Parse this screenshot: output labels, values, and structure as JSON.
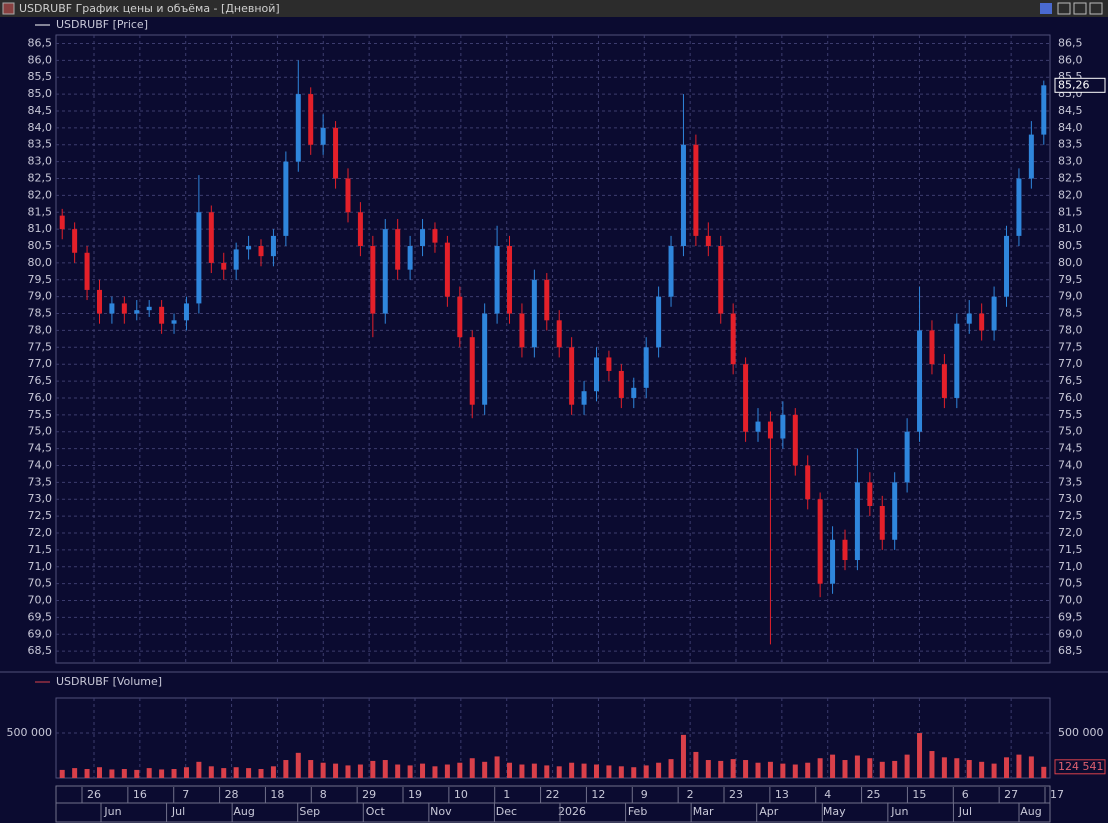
{
  "window": {
    "title": "USDRUBF График цены и объёма - [Дневной]"
  },
  "chart_data": [
    {
      "type": "candlestick",
      "legend": "USDRUBF [Price]",
      "up_color": "#2f86dc",
      "down_color": "#e4202a",
      "grid": true,
      "ylim": [
        68.15,
        86.75
      ],
      "yticks": [
        {
          "value": 68.5,
          "label": "68,5"
        },
        {
          "value": 69,
          "label": "69,0"
        },
        {
          "value": 69.5,
          "label": "69,5"
        },
        {
          "value": 70,
          "label": "70,0"
        },
        {
          "value": 70.5,
          "label": "70,5"
        },
        {
          "value": 71,
          "label": "71,0"
        },
        {
          "value": 71.5,
          "label": "71,5"
        },
        {
          "value": 72,
          "label": "72,0"
        },
        {
          "value": 72.5,
          "label": "72,5"
        },
        {
          "value": 73,
          "label": "73,0"
        },
        {
          "value": 73.5,
          "label": "73,5"
        },
        {
          "value": 74,
          "label": "74,0"
        },
        {
          "value": 74.5,
          "label": "74,5"
        },
        {
          "value": 75,
          "label": "75,0"
        },
        {
          "value": 75.5,
          "label": "75,5"
        },
        {
          "value": 76,
          "label": "76,0"
        },
        {
          "value": 76.5,
          "label": "76,5"
        },
        {
          "value": 77,
          "label": "77,0"
        },
        {
          "value": 77.5,
          "label": "77,5"
        },
        {
          "value": 78,
          "label": "78,0"
        },
        {
          "value": 78.5,
          "label": "78,5"
        },
        {
          "value": 79,
          "label": "79,0"
        },
        {
          "value": 79.5,
          "label": "79,5"
        },
        {
          "value": 80,
          "label": "80,0"
        },
        {
          "value": 80.5,
          "label": "80,5"
        },
        {
          "value": 81,
          "label": "81,0"
        },
        {
          "value": 81.5,
          "label": "81,5"
        },
        {
          "value": 82,
          "label": "82,0"
        },
        {
          "value": 82.5,
          "label": "82,5"
        },
        {
          "value": 83,
          "label": "83,0"
        },
        {
          "value": 83.5,
          "label": "83,5"
        },
        {
          "value": 84,
          "label": "84,0"
        },
        {
          "value": 84.5,
          "label": "84,5"
        },
        {
          "value": 85,
          "label": "85,0"
        },
        {
          "value": 85.5,
          "label": "85,5"
        },
        {
          "value": 86,
          "label": "86,0"
        },
        {
          "value": 86.5,
          "label": "86,5"
        }
      ],
      "open": [
        81.4,
        81.0,
        80.3,
        79.2,
        78.5,
        78.8,
        78.5,
        78.6,
        78.7,
        78.2,
        78.3,
        78.8,
        81.5,
        80.0,
        79.8,
        80.4,
        80.5,
        80.2,
        80.8,
        83.0,
        85.0,
        83.5,
        84.0,
        82.5,
        81.5,
        80.5,
        78.5,
        81.0,
        79.8,
        80.5,
        81.0,
        80.6,
        79.0,
        77.8,
        75.8,
        78.5,
        80.5,
        78.5,
        77.5,
        79.5,
        78.3,
        77.5,
        75.8,
        76.2,
        77.2,
        76.8,
        76.0,
        76.3,
        77.5,
        79.0,
        80.5,
        83.5,
        80.8,
        80.5,
        78.5,
        77.0,
        75.0,
        75.3,
        74.8,
        75.5,
        74.0,
        73.0,
        70.5,
        71.8,
        71.2,
        73.5,
        72.8,
        71.8,
        73.5,
        75.0,
        78.0,
        77.0,
        76.0,
        78.2,
        78.5,
        78.0,
        79.0,
        80.8,
        82.5,
        83.8
      ],
      "high": [
        81.6,
        81.2,
        80.5,
        79.5,
        79.0,
        79.0,
        78.9,
        78.9,
        78.9,
        78.5,
        79.0,
        82.6,
        81.7,
        80.3,
        80.6,
        80.8,
        80.7,
        81.0,
        83.3,
        86.0,
        85.2,
        84.4,
        84.2,
        82.8,
        81.8,
        80.8,
        81.3,
        81.3,
        80.8,
        81.3,
        81.2,
        80.8,
        79.3,
        78.0,
        78.8,
        81.1,
        80.8,
        78.8,
        79.8,
        79.7,
        78.6,
        77.8,
        76.5,
        77.5,
        77.4,
        77.0,
        76.6,
        77.8,
        79.3,
        80.8,
        85.0,
        83.8,
        81.2,
        80.8,
        78.8,
        77.2,
        75.7,
        75.6,
        75.9,
        75.7,
        74.3,
        73.2,
        72.2,
        72.1,
        74.5,
        73.8,
        73.1,
        73.8,
        75.4,
        79.3,
        78.3,
        77.3,
        78.5,
        78.9,
        78.8,
        79.3,
        81.1,
        82.8,
        84.2,
        85.4
      ],
      "low": [
        80.7,
        80.0,
        78.9,
        78.2,
        78.2,
        78.2,
        78.3,
        78.4,
        77.9,
        77.9,
        78.0,
        78.5,
        79.7,
        79.5,
        79.5,
        80.1,
        79.9,
        79.9,
        80.5,
        82.7,
        83.2,
        83.2,
        82.2,
        81.2,
        80.2,
        77.8,
        78.2,
        79.5,
        79.5,
        80.2,
        80.3,
        78.7,
        77.5,
        75.4,
        75.5,
        78.2,
        78.2,
        77.2,
        77.2,
        78.0,
        77.2,
        75.5,
        75.5,
        75.9,
        76.5,
        75.7,
        75.7,
        76.0,
        77.2,
        78.7,
        80.2,
        80.5,
        80.2,
        78.2,
        76.7,
        74.7,
        74.7,
        68.7,
        74.5,
        73.7,
        72.7,
        70.1,
        70.2,
        70.9,
        70.9,
        72.5,
        71.5,
        71.5,
        73.2,
        74.7,
        76.7,
        75.7,
        75.7,
        77.9,
        77.7,
        77.7,
        78.7,
        80.5,
        82.2,
        83.5
      ],
      "close": [
        81.0,
        80.3,
        79.2,
        78.5,
        78.8,
        78.5,
        78.6,
        78.7,
        78.2,
        78.3,
        78.8,
        81.5,
        80.0,
        79.8,
        80.4,
        80.5,
        80.2,
        80.8,
        83.0,
        85.0,
        83.5,
        84.0,
        82.5,
        81.5,
        80.5,
        78.5,
        81.0,
        79.8,
        80.5,
        81.0,
        80.6,
        79.0,
        77.8,
        75.8,
        78.5,
        80.5,
        78.5,
        77.5,
        79.5,
        78.3,
        77.5,
        75.8,
        76.2,
        77.2,
        76.8,
        76.0,
        76.3,
        77.5,
        79.0,
        80.5,
        83.5,
        80.8,
        80.5,
        78.5,
        77.0,
        75.0,
        75.3,
        74.8,
        75.5,
        74.0,
        73.0,
        70.5,
        71.8,
        71.2,
        73.5,
        72.8,
        71.8,
        73.5,
        75.0,
        78.0,
        77.0,
        76.0,
        78.2,
        78.5,
        78.0,
        79.0,
        80.8,
        82.5,
        83.8,
        85.26
      ],
      "current_value": {
        "value": 85.26,
        "label": "85,26"
      }
    },
    {
      "type": "bar",
      "legend": "USDRUBF [Volume]",
      "color": "#d9404a",
      "grid": true,
      "ylim": [
        0,
        890000
      ],
      "yticks": [
        {
          "value": 500000,
          "label": "500 000"
        }
      ],
      "values": [
        90000,
        110000,
        100000,
        120000,
        95000,
        100000,
        90000,
        110000,
        95000,
        100000,
        120000,
        180000,
        130000,
        110000,
        120000,
        110000,
        100000,
        130000,
        200000,
        280000,
        200000,
        170000,
        160000,
        140000,
        150000,
        190000,
        200000,
        150000,
        140000,
        160000,
        130000,
        150000,
        170000,
        220000,
        180000,
        240000,
        170000,
        150000,
        160000,
        140000,
        130000,
        170000,
        160000,
        150000,
        140000,
        130000,
        120000,
        140000,
        170000,
        210000,
        480000,
        290000,
        200000,
        190000,
        210000,
        200000,
        170000,
        180000,
        160000,
        150000,
        170000,
        220000,
        260000,
        200000,
        250000,
        220000,
        180000,
        190000,
        260000,
        500000,
        300000,
        230000,
        220000,
        200000,
        180000,
        160000,
        230000,
        260000,
        240000,
        124541
      ],
      "current_value": {
        "value": 124541,
        "label": "124 541"
      }
    }
  ],
  "x_axis": {
    "days": [
      "26",
      "16",
      "7",
      "28",
      "18",
      "8",
      "29",
      "19",
      "10",
      "1",
      "22",
      "12",
      "9",
      "2",
      "23",
      "13",
      "4",
      "25",
      "15",
      "6",
      "27",
      "17"
    ],
    "months": [
      "Jun",
      "Jul",
      "Aug",
      "Sep",
      "Oct",
      "Nov",
      "Dec",
      "2026",
      "Feb",
      "Mar",
      "Apr",
      "May",
      "Jun",
      "Jul",
      "Aug"
    ]
  }
}
